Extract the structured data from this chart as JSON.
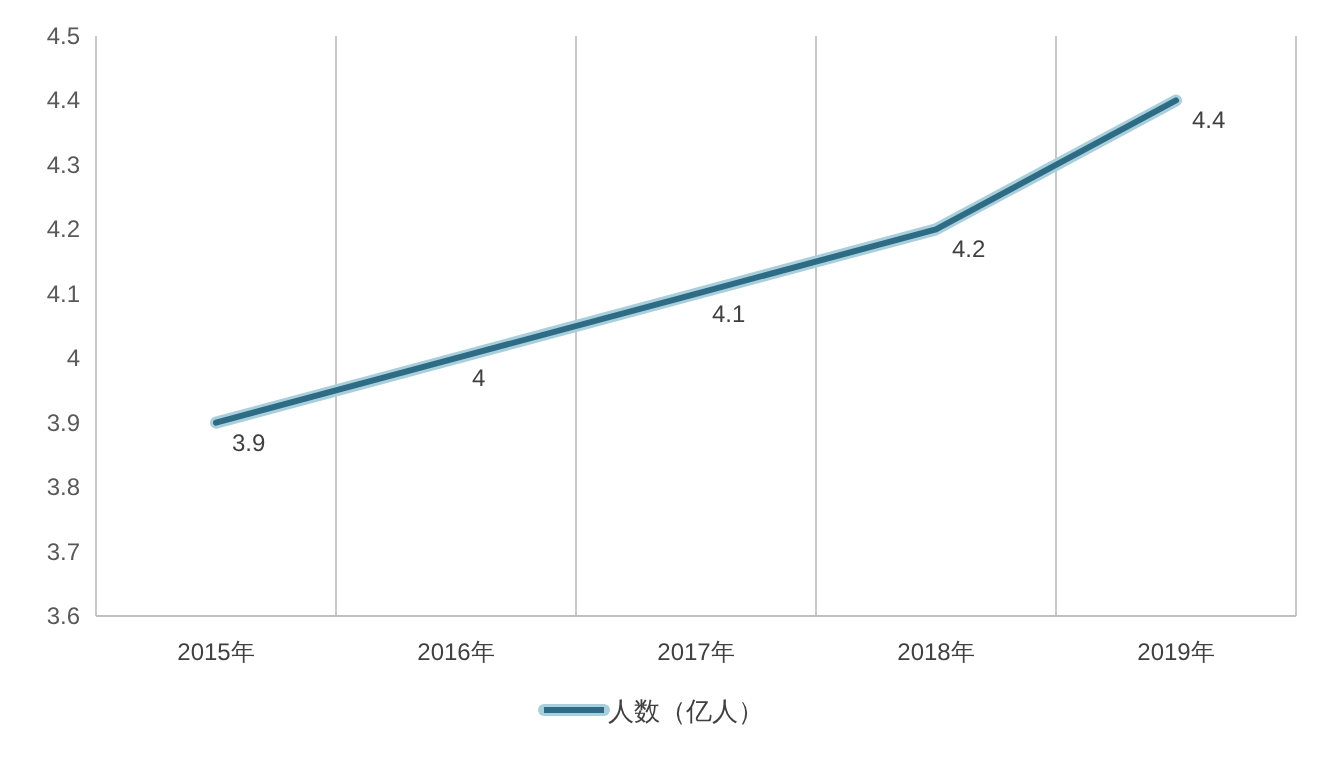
{
  "chart_data": {
    "type": "line",
    "categories": [
      "2015年",
      "2016年",
      "2017年",
      "2018年",
      "2019年"
    ],
    "series": [
      {
        "name": "人数（亿人）",
        "color": "#2e6b84",
        "values": [
          3.9,
          4,
          4.1,
          4.2,
          4.4
        ]
      }
    ],
    "ylim": [
      3.6,
      4.5
    ],
    "yticks": [
      3.6,
      3.7,
      3.8,
      3.9,
      4,
      4.1,
      4.2,
      4.3,
      4.4,
      4.5
    ],
    "grid": "x",
    "legend": "bottom",
    "data_labels": true,
    "marker": "none",
    "line_style": "solid"
  }
}
